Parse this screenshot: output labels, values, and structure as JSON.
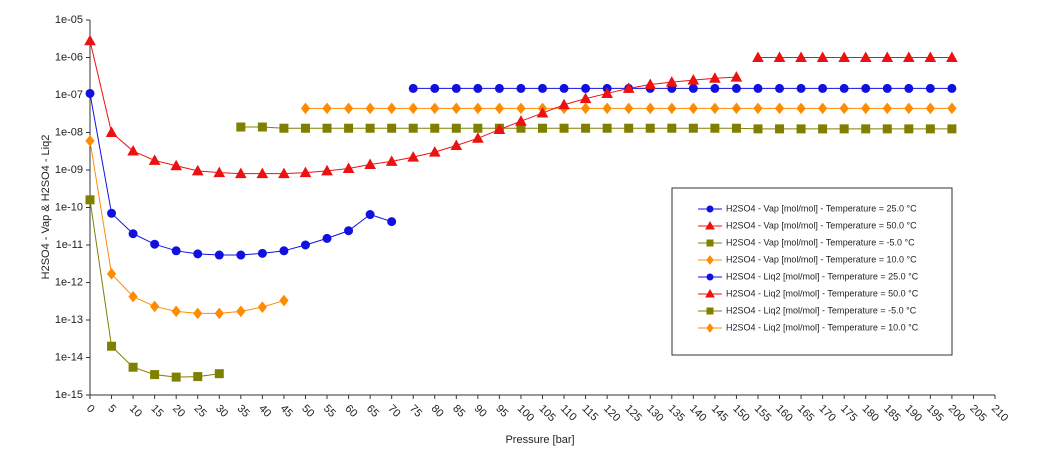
{
  "chart_data": {
    "type": "line",
    "x_label": "Pressure [bar]",
    "y_label": "H2SO4 - Vap & H2SO4 - Liq2",
    "log_y": true,
    "grid": false,
    "xlim": [
      0,
      210
    ],
    "xticks": [
      0,
      5,
      10,
      15,
      20,
      25,
      30,
      35,
      40,
      45,
      50,
      55,
      60,
      65,
      70,
      75,
      80,
      85,
      90,
      95,
      100,
      105,
      110,
      115,
      120,
      125,
      130,
      135,
      140,
      145,
      150,
      155,
      160,
      165,
      170,
      175,
      180,
      185,
      190,
      195,
      200,
      205,
      210
    ],
    "ylim": [
      1e-15,
      1e-05
    ],
    "yticks": [
      {
        "value": 1e-15,
        "label": "1e-15"
      },
      {
        "value": 1e-14,
        "label": "1e-14"
      },
      {
        "value": 1e-13,
        "label": "1e-13"
      },
      {
        "value": 1e-12,
        "label": "1e-12"
      },
      {
        "value": 1e-11,
        "label": "1e-11"
      },
      {
        "value": 1e-10,
        "label": "1e-10"
      },
      {
        "value": 1e-09,
        "label": "1e-09"
      },
      {
        "value": 1e-08,
        "label": "1e-08"
      },
      {
        "value": 1e-07,
        "label": "1e-07"
      },
      {
        "value": 1e-06,
        "label": "1e-06"
      },
      {
        "value": 1e-05,
        "label": "1e-05"
      }
    ],
    "series": [
      {
        "name": "H2SO4 - Vap [mol/mol] - Temperature = 25.0 °C",
        "color": "#1010e0",
        "marker": "circle",
        "x": [
          75,
          80,
          85,
          90,
          95,
          100,
          105,
          110,
          115,
          120,
          125,
          130,
          135,
          140,
          145,
          150,
          155,
          160,
          165,
          170,
          175,
          180,
          185,
          190,
          195,
          200
        ],
        "values": [
          1.5e-07,
          1.5e-07,
          1.5e-07,
          1.5e-07,
          1.5e-07,
          1.5e-07,
          1.5e-07,
          1.5e-07,
          1.5e-07,
          1.5e-07,
          1.5e-07,
          1.5e-07,
          1.5e-07,
          1.5e-07,
          1.5e-07,
          1.5e-07,
          1.5e-07,
          1.5e-07,
          1.5e-07,
          1.5e-07,
          1.5e-07,
          1.5e-07,
          1.5e-07,
          1.5e-07,
          1.5e-07,
          1.5e-07
        ]
      },
      {
        "name": "H2SO4 - Vap [mol/mol] - Temperature = 50.0 °C",
        "color": "#ee1111",
        "marker": "triangle",
        "x": [
          155,
          160,
          165,
          170,
          175,
          180,
          185,
          190,
          195,
          200
        ],
        "values": [
          1e-06,
          1e-06,
          1e-06,
          1e-06,
          1e-06,
          1e-06,
          1e-06,
          1e-06,
          1e-06,
          1e-06
        ]
      },
      {
        "name": "H2SO4 - Vap [mol/mol] - Temperature = -5.0 °C",
        "color": "#808000",
        "marker": "square",
        "x": [
          35,
          40,
          45,
          50,
          55,
          60,
          65,
          70,
          75,
          80,
          85,
          90,
          95,
          100,
          105,
          110,
          115,
          120,
          125,
          130,
          135,
          140,
          145,
          150,
          155,
          160,
          165,
          170,
          175,
          180,
          185,
          190,
          195,
          200
        ],
        "values": [
          1.4e-08,
          1.4e-08,
          1.3e-08,
          1.3e-08,
          1.3e-08,
          1.3e-08,
          1.3e-08,
          1.3e-08,
          1.3e-08,
          1.3e-08,
          1.3e-08,
          1.3e-08,
          1.3e-08,
          1.3e-08,
          1.3e-08,
          1.3e-08,
          1.3e-08,
          1.3e-08,
          1.3e-08,
          1.3e-08,
          1.3e-08,
          1.3e-08,
          1.3e-08,
          1.3e-08,
          1.25e-08,
          1.25e-08,
          1.25e-08,
          1.25e-08,
          1.25e-08,
          1.25e-08,
          1.25e-08,
          1.25e-08,
          1.25e-08,
          1.25e-08
        ]
      },
      {
        "name": "H2SO4 - Vap [mol/mol] - Temperature = 10.0 °C",
        "color": "#ff8c00",
        "marker": "diamond",
        "x": [
          50,
          55,
          60,
          65,
          70,
          75,
          80,
          85,
          90,
          95,
          100,
          105,
          110,
          115,
          120,
          125,
          130,
          135,
          140,
          145,
          150,
          155,
          160,
          165,
          170,
          175,
          180,
          185,
          190,
          195,
          200
        ],
        "values": [
          4.4e-08,
          4.4e-08,
          4.4e-08,
          4.4e-08,
          4.4e-08,
          4.4e-08,
          4.4e-08,
          4.4e-08,
          4.4e-08,
          4.4e-08,
          4.4e-08,
          4.4e-08,
          4.4e-08,
          4.4e-08,
          4.4e-08,
          4.4e-08,
          4.4e-08,
          4.4e-08,
          4.4e-08,
          4.4e-08,
          4.4e-08,
          4.4e-08,
          4.4e-08,
          4.4e-08,
          4.4e-08,
          4.4e-08,
          4.4e-08,
          4.4e-08,
          4.4e-08,
          4.4e-08,
          4.4e-08
        ]
      },
      {
        "name": "H2SO4 - Liq2 [mol/mol] - Temperature = 25.0 °C",
        "color": "#1010e0",
        "marker": "circle",
        "x": [
          0,
          5,
          10,
          15,
          20,
          25,
          30,
          35,
          40,
          45,
          50,
          55,
          60,
          65,
          70
        ],
        "values": [
          1.1e-07,
          7e-11,
          2e-11,
          1.05e-11,
          7e-12,
          5.8e-12,
          5.4e-12,
          5.4e-12,
          6e-12,
          7e-12,
          1e-11,
          1.5e-11,
          2.4e-11,
          6.5e-11,
          4.2e-11
        ]
      },
      {
        "name": "H2SO4 - Liq2 [mol/mol] - Temperature = 50.0 °C",
        "color": "#ee1111",
        "marker": "triangle",
        "x": [
          0,
          5,
          10,
          15,
          20,
          25,
          30,
          35,
          40,
          45,
          50,
          55,
          60,
          65,
          70,
          75,
          80,
          85,
          90,
          95,
          100,
          105,
          110,
          115,
          120,
          125,
          130,
          135,
          140,
          145,
          150
        ],
        "values": [
          2.8e-06,
          1e-08,
          3.2e-09,
          1.8e-09,
          1.3e-09,
          9.5e-10,
          8.5e-10,
          8e-10,
          8e-10,
          8e-10,
          8.5e-10,
          9.5e-10,
          1.1e-09,
          1.4e-09,
          1.7e-09,
          2.2e-09,
          3e-09,
          4.5e-09,
          7e-09,
          1.2e-08,
          2e-08,
          3.3e-08,
          5.5e-08,
          8e-08,
          1.1e-07,
          1.5e-07,
          1.9e-07,
          2.2e-07,
          2.5e-07,
          2.8e-07,
          3e-07
        ]
      },
      {
        "name": "H2SO4 - Liq2 [mol/mol] - Temperature = -5.0 °C",
        "color": "#808000",
        "marker": "square",
        "x": [
          0,
          5,
          10,
          15,
          20,
          25,
          30
        ],
        "values": [
          1.6e-10,
          2e-14,
          5.5e-15,
          3.5e-15,
          3e-15,
          3.1e-15,
          3.7e-15
        ]
      },
      {
        "name": "H2SO4 - Liq2 [mol/mol] - Temperature = 10.0 °C",
        "color": "#ff8c00",
        "marker": "diamond",
        "x": [
          0,
          5,
          10,
          15,
          20,
          25,
          30,
          35,
          40,
          45
        ],
        "values": [
          6e-09,
          1.7e-12,
          4.2e-13,
          2.3e-13,
          1.7e-13,
          1.5e-13,
          1.5e-13,
          1.7e-13,
          2.2e-13,
          3.3e-13
        ]
      }
    ]
  }
}
